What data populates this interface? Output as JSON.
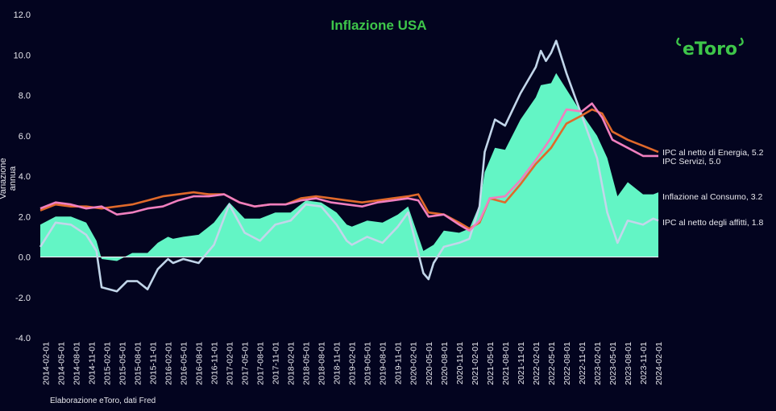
{
  "colors": {
    "background": "#03041f",
    "title": "#3ec64a",
    "logo": "#3ec64a",
    "text": "#e8e8ee",
    "area": "#63f5c5",
    "energy_line": "#e0692a",
    "services_line": "#f07fbf",
    "rent_line": "#c2d6ea"
  },
  "logo_text": "eToro",
  "source": "Elaborazione eToro, dati Fred",
  "chart_data": {
    "type": "area",
    "title": "Inflazione USA",
    "xlabel": "",
    "ylabel": "Variazione annua",
    "ylim": [
      -4.0,
      12.0
    ],
    "yticks": [
      "-4.0",
      "-2.0",
      "0.0",
      "2.0",
      "4.0",
      "6.0",
      "8.0",
      "10.0",
      "12.0"
    ],
    "x_start": "2014-01",
    "x_end": "2024-02",
    "xticks": [
      "2014-02-01",
      "2014-05-01",
      "2014-08-01",
      "2014-11-01",
      "2015-02-01",
      "2015-05-01",
      "2015-08-01",
      "2015-11-01",
      "2016-02-01",
      "2016-05-01",
      "2016-08-01",
      "2016-11-01",
      "2017-02-01",
      "2017-05-01",
      "2017-08-01",
      "2017-11-01",
      "2018-02-01",
      "2018-05-01",
      "2018-08-01",
      "2018-11-01",
      "2019-02-01",
      "2019-05-01",
      "2019-08-01",
      "2019-11-01",
      "2020-02-01",
      "2020-05-01",
      "2020-08-01",
      "2020-11-01",
      "2021-02-01",
      "2021-05-01",
      "2021-08-01",
      "2021-11-01",
      "2022-02-01",
      "2022-05-01",
      "2022-08-01",
      "2022-11-01",
      "2023-02-01",
      "2023-05-01",
      "2023-08-01",
      "2023-11-01",
      "2024-02-01"
    ],
    "grid": false,
    "series": [
      {
        "name": "Inflazione al Consumo",
        "label": "Inflazione al Consumo, 3.2",
        "kind": "area",
        "points": [
          [
            "2014-01",
            1.6
          ],
          [
            "2014-04",
            2.0
          ],
          [
            "2014-07",
            2.0
          ],
          [
            "2014-10",
            1.7
          ],
          [
            "2014-12",
            0.8
          ],
          [
            "2015-01",
            -0.1
          ],
          [
            "2015-04",
            -0.2
          ],
          [
            "2015-07",
            0.2
          ],
          [
            "2015-10",
            0.2
          ],
          [
            "2015-12",
            0.7
          ],
          [
            "2016-02",
            1.0
          ],
          [
            "2016-03",
            0.9
          ],
          [
            "2016-05",
            1.0
          ],
          [
            "2016-08",
            1.1
          ],
          [
            "2016-11",
            1.7
          ],
          [
            "2017-02",
            2.7
          ],
          [
            "2017-05",
            1.9
          ],
          [
            "2017-08",
            1.9
          ],
          [
            "2017-11",
            2.2
          ],
          [
            "2018-02",
            2.2
          ],
          [
            "2018-05",
            2.8
          ],
          [
            "2018-08",
            2.7
          ],
          [
            "2018-11",
            2.2
          ],
          [
            "2019-01",
            1.6
          ],
          [
            "2019-02",
            1.5
          ],
          [
            "2019-05",
            1.8
          ],
          [
            "2019-08",
            1.7
          ],
          [
            "2019-11",
            2.1
          ],
          [
            "2020-01",
            2.5
          ],
          [
            "2020-04",
            0.3
          ],
          [
            "2020-06",
            0.6
          ],
          [
            "2020-08",
            1.3
          ],
          [
            "2020-11",
            1.2
          ],
          [
            "2021-01",
            1.4
          ],
          [
            "2021-03",
            2.6
          ],
          [
            "2021-04",
            4.2
          ],
          [
            "2021-06",
            5.4
          ],
          [
            "2021-08",
            5.3
          ],
          [
            "2021-11",
            6.8
          ],
          [
            "2022-02",
            7.9
          ],
          [
            "2022-03",
            8.5
          ],
          [
            "2022-05",
            8.6
          ],
          [
            "2022-06",
            9.1
          ],
          [
            "2022-08",
            8.3
          ],
          [
            "2022-11",
            7.1
          ],
          [
            "2023-02",
            6.0
          ],
          [
            "2023-04",
            4.9
          ],
          [
            "2023-06",
            3.0
          ],
          [
            "2023-08",
            3.7
          ],
          [
            "2023-11",
            3.1
          ],
          [
            "2024-01",
            3.1
          ],
          [
            "2024-02",
            3.2
          ]
        ]
      },
      {
        "name": "IPC al netto di Energia",
        "label": "IPC al netto di Energia, 5.2",
        "kind": "line",
        "points": [
          [
            "2014-01",
            2.3
          ],
          [
            "2014-04",
            2.6
          ],
          [
            "2014-07",
            2.5
          ],
          [
            "2014-10",
            2.5
          ],
          [
            "2015-01",
            2.4
          ],
          [
            "2015-04",
            2.5
          ],
          [
            "2015-07",
            2.6
          ],
          [
            "2015-10",
            2.8
          ],
          [
            "2016-01",
            3.0
          ],
          [
            "2016-04",
            3.1
          ],
          [
            "2016-07",
            3.2
          ],
          [
            "2016-10",
            3.1
          ],
          [
            "2017-01",
            3.1
          ],
          [
            "2017-04",
            2.7
          ],
          [
            "2017-07",
            2.5
          ],
          [
            "2017-10",
            2.6
          ],
          [
            "2018-01",
            2.6
          ],
          [
            "2018-04",
            2.9
          ],
          [
            "2018-07",
            3.0
          ],
          [
            "2018-10",
            2.9
          ],
          [
            "2019-01",
            2.8
          ],
          [
            "2019-04",
            2.7
          ],
          [
            "2019-07",
            2.8
          ],
          [
            "2019-10",
            2.9
          ],
          [
            "2020-01",
            3.0
          ],
          [
            "2020-03",
            3.1
          ],
          [
            "2020-05",
            2.2
          ],
          [
            "2020-08",
            2.1
          ],
          [
            "2020-11",
            1.7
          ],
          [
            "2021-01",
            1.4
          ],
          [
            "2021-03",
            1.7
          ],
          [
            "2021-05",
            2.9
          ],
          [
            "2021-08",
            2.7
          ],
          [
            "2021-11",
            3.6
          ],
          [
            "2022-02",
            4.6
          ],
          [
            "2022-05",
            5.4
          ],
          [
            "2022-08",
            6.6
          ],
          [
            "2022-11",
            7.0
          ],
          [
            "2023-01",
            7.3
          ],
          [
            "2023-03",
            7.1
          ],
          [
            "2023-05",
            6.2
          ],
          [
            "2023-08",
            5.8
          ],
          [
            "2023-11",
            5.5
          ],
          [
            "2024-02",
            5.2
          ]
        ]
      },
      {
        "name": "IPC Servizi",
        "label": "IPC Servizi, 5.0",
        "kind": "line",
        "points": [
          [
            "2014-01",
            2.4
          ],
          [
            "2014-04",
            2.7
          ],
          [
            "2014-07",
            2.6
          ],
          [
            "2014-10",
            2.4
          ],
          [
            "2015-01",
            2.5
          ],
          [
            "2015-04",
            2.1
          ],
          [
            "2015-07",
            2.2
          ],
          [
            "2015-10",
            2.4
          ],
          [
            "2016-01",
            2.5
          ],
          [
            "2016-04",
            2.8
          ],
          [
            "2016-07",
            3.0
          ],
          [
            "2016-10",
            3.0
          ],
          [
            "2017-01",
            3.1
          ],
          [
            "2017-04",
            2.7
          ],
          [
            "2017-07",
            2.5
          ],
          [
            "2017-10",
            2.6
          ],
          [
            "2018-01",
            2.6
          ],
          [
            "2018-04",
            2.8
          ],
          [
            "2018-07",
            2.9
          ],
          [
            "2018-10",
            2.7
          ],
          [
            "2019-01",
            2.6
          ],
          [
            "2019-04",
            2.5
          ],
          [
            "2019-07",
            2.7
          ],
          [
            "2019-10",
            2.8
          ],
          [
            "2020-01",
            2.9
          ],
          [
            "2020-03",
            2.8
          ],
          [
            "2020-05",
            2.0
          ],
          [
            "2020-08",
            2.1
          ],
          [
            "2020-11",
            1.6
          ],
          [
            "2021-01",
            1.3
          ],
          [
            "2021-03",
            1.8
          ],
          [
            "2021-05",
            2.9
          ],
          [
            "2021-08",
            3.0
          ],
          [
            "2021-11",
            3.8
          ],
          [
            "2022-02",
            4.8
          ],
          [
            "2022-05",
            5.9
          ],
          [
            "2022-08",
            7.3
          ],
          [
            "2022-11",
            7.2
          ],
          [
            "2023-01",
            7.6
          ],
          [
            "2023-03",
            6.9
          ],
          [
            "2023-05",
            5.8
          ],
          [
            "2023-08",
            5.4
          ],
          [
            "2023-11",
            5.0
          ],
          [
            "2024-02",
            5.0
          ]
        ]
      },
      {
        "name": "IPC al netto degli affitti",
        "label": "IPC al netto degli affitti, 1.8",
        "kind": "line",
        "points": [
          [
            "2014-01",
            0.5
          ],
          [
            "2014-04",
            1.7
          ],
          [
            "2014-07",
            1.6
          ],
          [
            "2014-10",
            1.1
          ],
          [
            "2014-12",
            0.3
          ],
          [
            "2015-01",
            -1.5
          ],
          [
            "2015-04",
            -1.7
          ],
          [
            "2015-06",
            -1.2
          ],
          [
            "2015-08",
            -1.2
          ],
          [
            "2015-10",
            -1.6
          ],
          [
            "2015-12",
            -0.6
          ],
          [
            "2016-02",
            -0.1
          ],
          [
            "2016-03",
            -0.3
          ],
          [
            "2016-05",
            -0.1
          ],
          [
            "2016-08",
            -0.3
          ],
          [
            "2016-11",
            0.6
          ],
          [
            "2017-02",
            2.6
          ],
          [
            "2017-05",
            1.2
          ],
          [
            "2017-08",
            0.8
          ],
          [
            "2017-11",
            1.6
          ],
          [
            "2018-02",
            1.8
          ],
          [
            "2018-05",
            2.6
          ],
          [
            "2018-08",
            2.5
          ],
          [
            "2018-11",
            1.6
          ],
          [
            "2019-01",
            0.8
          ],
          [
            "2019-02",
            0.6
          ],
          [
            "2019-05",
            1.0
          ],
          [
            "2019-08",
            0.7
          ],
          [
            "2019-11",
            1.5
          ],
          [
            "2020-01",
            2.2
          ],
          [
            "2020-04",
            -0.8
          ],
          [
            "2020-05",
            -1.1
          ],
          [
            "2020-06",
            -0.3
          ],
          [
            "2020-08",
            0.5
          ],
          [
            "2020-11",
            0.7
          ],
          [
            "2021-01",
            0.9
          ],
          [
            "2021-03",
            2.5
          ],
          [
            "2021-04",
            5.2
          ],
          [
            "2021-06",
            6.8
          ],
          [
            "2021-08",
            6.5
          ],
          [
            "2021-11",
            8.1
          ],
          [
            "2022-02",
            9.4
          ],
          [
            "2022-03",
            10.2
          ],
          [
            "2022-04",
            9.7
          ],
          [
            "2022-05",
            10.1
          ],
          [
            "2022-06",
            10.7
          ],
          [
            "2022-08",
            9.1
          ],
          [
            "2022-11",
            7.0
          ],
          [
            "2023-02",
            4.9
          ],
          [
            "2023-04",
            2.2
          ],
          [
            "2023-06",
            0.7
          ],
          [
            "2023-08",
            1.8
          ],
          [
            "2023-11",
            1.6
          ],
          [
            "2024-01",
            1.9
          ],
          [
            "2024-02",
            1.8
          ]
        ]
      }
    ]
  }
}
